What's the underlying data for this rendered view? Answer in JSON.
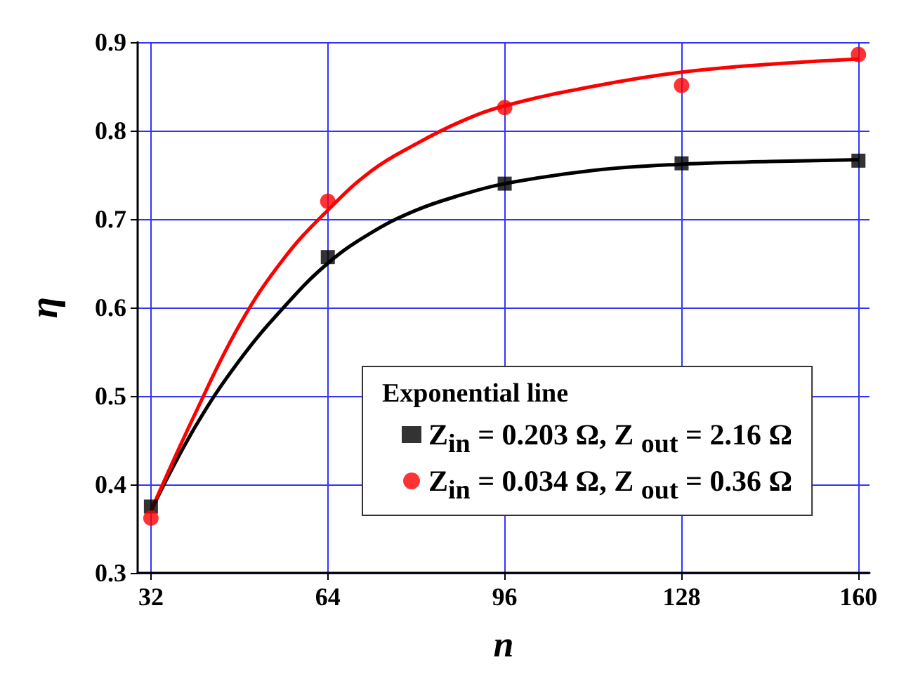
{
  "chart_data": {
    "type": "scatter",
    "xlabel": "n",
    "ylabel": "η",
    "legend_title": "Exponential line",
    "legend": "bottom right",
    "grid": true,
    "xlim": [
      29.6,
      162
    ],
    "xticks": [
      32,
      64,
      96,
      128,
      160
    ],
    "ylim": [
      0.3,
      0.9
    ],
    "yticks": [
      0.3,
      0.4,
      0.5,
      0.6,
      0.7,
      0.8,
      0.9
    ],
    "x": [
      32,
      64,
      96,
      128,
      160
    ],
    "series": [
      {
        "type": "line",
        "color": "#000000",
        "marker": "none",
        "x": [
          32,
          40,
          48,
          56,
          64,
          72,
          80,
          88,
          96,
          112,
          128,
          144,
          160
        ],
        "values": [
          0.37,
          0.465,
          0.54,
          0.6,
          0.65,
          0.685,
          0.71,
          0.727,
          0.74,
          0.755,
          0.762,
          0.765,
          0.767
        ]
      },
      {
        "type": "line",
        "color": "#ff0000",
        "marker": "none",
        "x": [
          32,
          40,
          48,
          56,
          64,
          72,
          80,
          88,
          96,
          112,
          128,
          144,
          160
        ],
        "values": [
          0.37,
          0.48,
          0.58,
          0.655,
          0.71,
          0.755,
          0.785,
          0.81,
          0.828,
          0.85,
          0.866,
          0.875,
          0.881
        ]
      },
      {
        "name": "Z$_{in}$ = 0.203 Ω, Z $_{out}$ = 2.16 Ω",
        "color": "#000000",
        "marker": "square",
        "values": [
          0.375,
          0.657,
          0.74,
          0.763,
          0.766
        ]
      },
      {
        "name": "Z$_{in}$ = 0.034 Ω, Z $_{out}$ = 0.36 Ω",
        "color": "#ff0000",
        "marker": "circle",
        "values": [
          0.362,
          0.72,
          0.826,
          0.851,
          0.886
        ]
      }
    ]
  }
}
